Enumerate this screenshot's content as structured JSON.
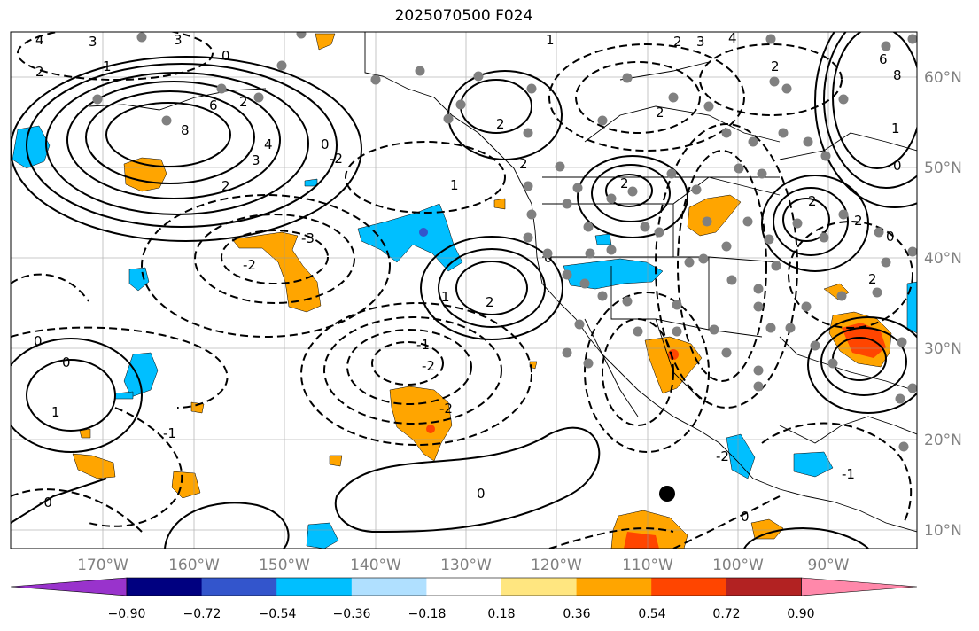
{
  "title": "2025070500 F024",
  "lon_labels": [
    "170°W",
    "160°W",
    "150°W",
    "140°W",
    "130°W",
    "120°W",
    "110°W",
    "100°W",
    "90°W"
  ],
  "lat_labels": [
    "60°N",
    "50°N",
    "40°N",
    "30°N",
    "20°N",
    "10°N"
  ],
  "colorbar": {
    "ticks": [
      "−0.90",
      "−0.72",
      "−0.54",
      "−0.36",
      "−0.18",
      "0.18",
      "0.36",
      "0.54",
      "0.72",
      "0.90"
    ],
    "colors": [
      "#9933cc",
      "#000080",
      "#3355cc",
      "#00bfff",
      "#b0e0ff",
      "#ffffff",
      "#ffe680",
      "#ffa500",
      "#ff4500",
      "#b22222",
      "#ff88aa"
    ]
  },
  "fill_colors": {
    "orange": "#ffa500",
    "red": "#ff4500",
    "cyan": "#00bfff",
    "blue": "#3355cc"
  },
  "contour_labels": [
    "4",
    "3",
    "3",
    "2",
    "1",
    "2",
    "0",
    "6",
    "8",
    "4",
    "3",
    "2",
    "0",
    "-2",
    "2",
    "1",
    "2",
    "2",
    "2",
    "2",
    "3",
    "4",
    "2",
    "8",
    "6",
    "1",
    "0",
    "2",
    "2",
    "1",
    "0",
    "-3",
    "-2",
    "1",
    "2",
    "2",
    "0",
    "0",
    "1",
    "-1",
    "-2",
    "-2",
    "0",
    "-1",
    "-1",
    "-2",
    "1",
    "0",
    "0",
    "-0"
  ]
}
